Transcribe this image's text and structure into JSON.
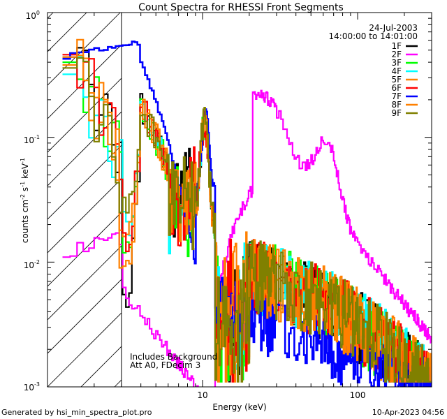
{
  "chart_data": {
    "type": "line",
    "title": "Count Spectra for RHESSI Front Segments",
    "xlabel": "Energy (keV)",
    "ylabel_main": "counts cm",
    "ylabel_exp1": "-2",
    "ylabel_mid": " s",
    "ylabel_exp2": "-1",
    "ylabel_end": " keV",
    "ylabel_exp3": "-1",
    "x_scale": "log",
    "y_scale": "log",
    "xlim": [
      1.0,
      300.0
    ],
    "ylim": [
      0.001,
      1.0
    ],
    "x_ticks": [
      {
        "value": 10,
        "label": "10"
      },
      {
        "value": 100,
        "label": "100"
      }
    ],
    "y_ticks": [
      {
        "value": 1,
        "label": "10",
        "exp": "0"
      },
      {
        "value": 0.1,
        "label": "10",
        "exp": "-1"
      },
      {
        "value": 0.01,
        "label": "10",
        "exp": "-2"
      },
      {
        "value": 0.001,
        "label": "10",
        "exp": "-3"
      }
    ],
    "hatched_region": {
      "x_from": 1.0,
      "x_to": 3.0
    },
    "date": "24-Jul-2003",
    "time_range": "14:00:00 to 14:01:00",
    "annotations": [
      "Includes Background",
      "Att A0, FDecim 3"
    ],
    "footer_left": "Generated by hsi_min_spectra_plot.pro",
    "footer_right": "10-Apr-2023 04:56",
    "series": [
      {
        "name": "1F",
        "color": "#000000",
        "seed": 11,
        "lowAmp": 0.44,
        "dipE": 3.6,
        "dipV": 0.005,
        "dipAt": 3.05
      },
      {
        "name": "2F",
        "color": "#ff00ff",
        "seed": 22
      },
      {
        "name": "3F",
        "color": "#00ff00",
        "seed": 33,
        "lowAmp": 0.4,
        "dipE": 3.4,
        "dipV": 0.012,
        "dipAt": 3.0
      },
      {
        "name": "4F",
        "color": "#00ffff",
        "seed": 44,
        "lowAmp": 0.32,
        "dipE": 3.2,
        "dipV": 0.02,
        "dipAt": 3.05
      },
      {
        "name": "5F",
        "color": "#ff8000",
        "seed": 55,
        "lowAmp": 0.38,
        "dipE": 3.3,
        "dipV": 0.018,
        "dipAt": 2.95
      },
      {
        "name": "6F",
        "color": "#ff0000",
        "seed": 66,
        "lowAmp": 0.46,
        "dipE": 3.2,
        "dipV": 0.015,
        "dipAt": 3.0
      },
      {
        "name": "7F",
        "color": "#0000ff",
        "seed": 77
      },
      {
        "name": "8F",
        "color": "#ff8000",
        "seed": 88,
        "lowAmp": 0.44,
        "dipE": 3.1,
        "dipV": 0.009,
        "dipAt": 2.9
      },
      {
        "name": "9F",
        "color": "#808000",
        "seed": 99,
        "lowAmp": 0.36,
        "dipE": 3.5,
        "dipV": 0.025,
        "dipAt": 2.95
      }
    ]
  }
}
